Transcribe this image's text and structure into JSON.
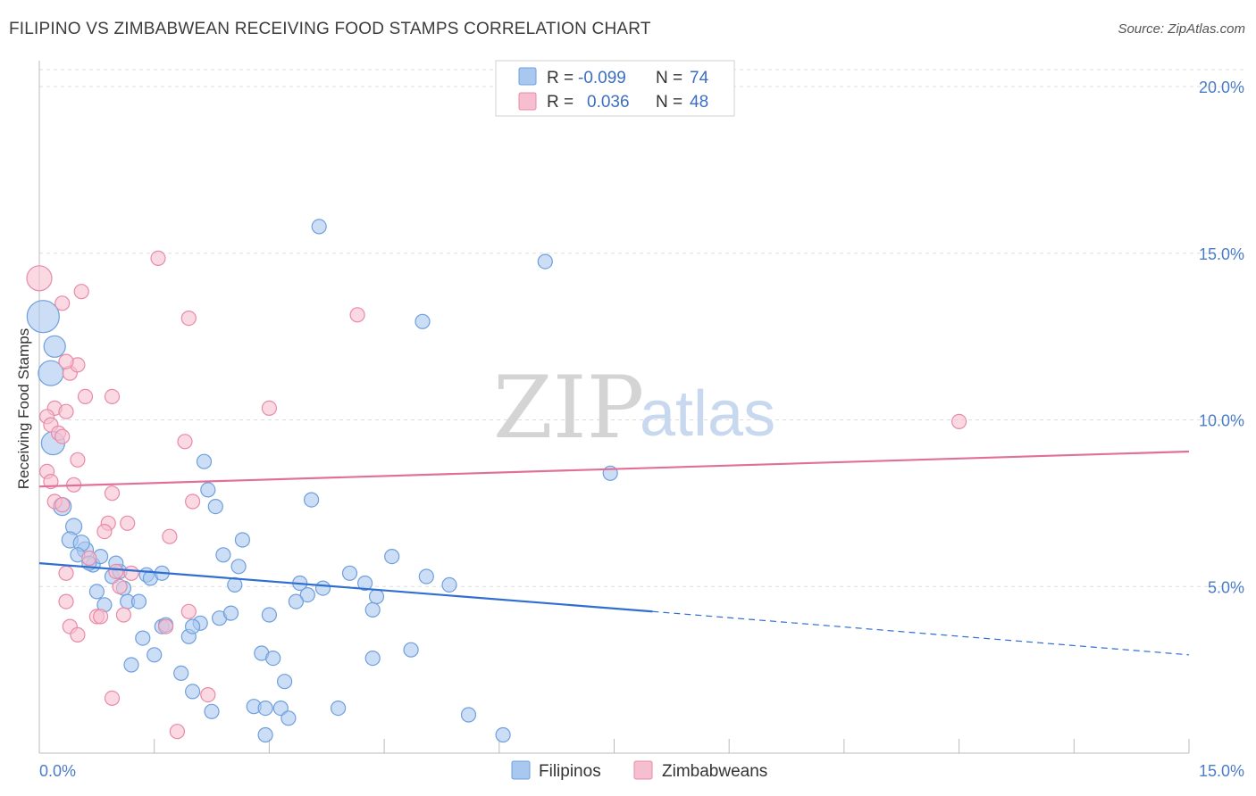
{
  "header": {
    "title": "FILIPINO VS ZIMBABWEAN RECEIVING FOOD STAMPS CORRELATION CHART",
    "source": "Source: ZipAtlas.com"
  },
  "legend": {
    "rows": [
      {
        "r_label": "R =",
        "r_value": "-0.099",
        "n_label": "N =",
        "n_value": "74"
      },
      {
        "r_label": "R =",
        "r_value": "0.036",
        "n_label": "N =",
        "n_value": "48"
      }
    ]
  },
  "watermark": {
    "zip": "ZIP",
    "atlas": "atlas"
  },
  "colors": {
    "filipino_fill": "#a9c8f0",
    "filipino_stroke": "#6f9fdc",
    "filipino_line": "#2f6fd0",
    "zimbabwean_fill": "#f6bfd0",
    "zimbabwean_stroke": "#e88aa8",
    "zimbabwean_line": "#e0709a",
    "tick_label": "#4a7cc9",
    "grid": "#dddddd"
  },
  "chart_data": {
    "type": "scatter",
    "title": "FILIPINO VS ZIMBABWEAN RECEIVING FOOD STAMPS CORRELATION CHART",
    "xlabel": "",
    "ylabel": "Receiving Food Stamps",
    "xlim": [
      0,
      15
    ],
    "ylim": [
      0,
      20
    ],
    "x_tick_labels": [
      "0.0%",
      "15.0%"
    ],
    "y_tick_labels": [
      "5.0%",
      "10.0%",
      "15.0%",
      "20.0%"
    ],
    "y_ticks": [
      5,
      10,
      15,
      20
    ],
    "grid": "horizontal dashed",
    "series": [
      {
        "name": "Filipinos",
        "R": -0.099,
        "N": 74,
        "trend": {
          "x0": 0,
          "y0": 5.7,
          "x1": 8.0,
          "y1": 4.25,
          "dashed_to_x": 15.0,
          "dashed_to_y": 2.95
        },
        "points": [
          [
            0.05,
            13.1,
            18
          ],
          [
            0.2,
            12.2,
            12
          ],
          [
            0.15,
            11.4,
            14
          ],
          [
            0.18,
            9.3,
            13
          ],
          [
            0.3,
            7.4,
            10
          ],
          [
            0.45,
            6.8,
            9
          ],
          [
            0.4,
            6.4,
            9
          ],
          [
            0.6,
            6.1,
            9
          ],
          [
            0.55,
            6.3,
            9
          ],
          [
            0.5,
            5.95,
            8
          ],
          [
            0.7,
            5.65,
            8
          ],
          [
            0.8,
            5.9,
            8
          ],
          [
            0.95,
            5.3,
            8
          ],
          [
            0.65,
            5.7,
            8
          ],
          [
            1.05,
            5.45,
            8
          ],
          [
            1.4,
            5.35,
            8
          ],
          [
            1.45,
            5.25,
            8
          ],
          [
            1.6,
            5.4,
            8
          ],
          [
            1.1,
            4.95,
            8
          ],
          [
            0.75,
            4.85,
            8
          ],
          [
            1.15,
            4.55,
            8
          ],
          [
            0.85,
            4.45,
            8
          ],
          [
            1.3,
            4.55,
            8
          ],
          [
            1.6,
            3.8,
            8
          ],
          [
            1.65,
            3.85,
            8
          ],
          [
            1.95,
            3.5,
            8
          ],
          [
            2.1,
            3.9,
            8
          ],
          [
            2.0,
            3.8,
            8
          ],
          [
            1.35,
            3.45,
            8
          ],
          [
            1.5,
            2.95,
            8
          ],
          [
            1.2,
            2.65,
            8
          ],
          [
            1.85,
            2.4,
            8
          ],
          [
            2.0,
            1.85,
            8
          ],
          [
            2.25,
            1.25,
            8
          ],
          [
            2.2,
            7.9,
            8
          ],
          [
            2.3,
            7.4,
            8
          ],
          [
            2.15,
            8.75,
            8
          ],
          [
            2.4,
            5.95,
            8
          ],
          [
            2.6,
            5.6,
            8
          ],
          [
            2.55,
            5.05,
            8
          ],
          [
            2.65,
            6.4,
            8
          ],
          [
            2.35,
            4.05,
            8
          ],
          [
            2.5,
            4.2,
            8
          ],
          [
            3.0,
            4.15,
            8
          ],
          [
            2.9,
            3.0,
            8
          ],
          [
            3.05,
            2.85,
            8
          ],
          [
            3.2,
            2.15,
            8
          ],
          [
            2.8,
            1.4,
            8
          ],
          [
            2.95,
            1.35,
            8
          ],
          [
            3.15,
            1.35,
            8
          ],
          [
            3.25,
            1.05,
            8
          ],
          [
            2.95,
            0.55,
            8
          ],
          [
            3.4,
            5.1,
            8
          ],
          [
            3.5,
            4.75,
            8
          ],
          [
            3.35,
            4.55,
            8
          ],
          [
            3.7,
            4.95,
            8
          ],
          [
            3.55,
            7.6,
            8
          ],
          [
            3.65,
            15.8,
            8
          ],
          [
            3.9,
            1.35,
            8
          ],
          [
            4.05,
            5.4,
            8
          ],
          [
            4.25,
            5.1,
            8
          ],
          [
            4.4,
            4.7,
            8
          ],
          [
            4.35,
            4.3,
            8
          ],
          [
            4.6,
            5.9,
            8
          ],
          [
            4.35,
            2.85,
            8
          ],
          [
            4.85,
            3.1,
            8
          ],
          [
            5.0,
            12.95,
            8
          ],
          [
            5.05,
            5.3,
            8
          ],
          [
            5.35,
            5.05,
            8
          ],
          [
            5.6,
            1.15,
            8
          ],
          [
            6.05,
            0.55,
            8
          ],
          [
            6.6,
            14.75,
            8
          ],
          [
            7.45,
            8.4,
            8
          ],
          [
            1.0,
            5.7,
            8
          ]
        ]
      },
      {
        "name": "Zimbabweans",
        "R": 0.036,
        "N": 48,
        "trend": {
          "x0": 0,
          "y0": 8.0,
          "x1": 15.0,
          "y1": 9.05
        },
        "points": [
          [
            0.0,
            14.25,
            14
          ],
          [
            0.3,
            13.5,
            8
          ],
          [
            0.55,
            13.85,
            8
          ],
          [
            1.55,
            14.85,
            8
          ],
          [
            1.95,
            13.05,
            8
          ],
          [
            4.15,
            13.15,
            8
          ],
          [
            0.4,
            11.4,
            8
          ],
          [
            0.5,
            11.65,
            8
          ],
          [
            0.35,
            11.75,
            8
          ],
          [
            0.6,
            10.7,
            8
          ],
          [
            0.95,
            10.7,
            8
          ],
          [
            0.2,
            10.35,
            8
          ],
          [
            0.35,
            10.25,
            8
          ],
          [
            0.1,
            10.1,
            8
          ],
          [
            0.15,
            9.85,
            8
          ],
          [
            0.25,
            9.6,
            8
          ],
          [
            0.3,
            9.5,
            8
          ],
          [
            1.9,
            9.35,
            8
          ],
          [
            3.0,
            10.35,
            8
          ],
          [
            12.0,
            9.95,
            8
          ],
          [
            0.5,
            8.8,
            8
          ],
          [
            0.1,
            8.45,
            8
          ],
          [
            0.15,
            8.15,
            8
          ],
          [
            0.45,
            8.05,
            8
          ],
          [
            0.95,
            7.8,
            8
          ],
          [
            0.2,
            7.55,
            8
          ],
          [
            0.3,
            7.45,
            8
          ],
          [
            2.0,
            7.55,
            8
          ],
          [
            0.9,
            6.9,
            8
          ],
          [
            1.15,
            6.9,
            8
          ],
          [
            0.85,
            6.65,
            8
          ],
          [
            1.7,
            6.5,
            8
          ],
          [
            0.65,
            5.85,
            8
          ],
          [
            1.0,
            5.45,
            8
          ],
          [
            1.2,
            5.4,
            8
          ],
          [
            0.35,
            5.4,
            8
          ],
          [
            0.35,
            4.55,
            8
          ],
          [
            0.75,
            4.1,
            8
          ],
          [
            0.8,
            4.1,
            8
          ],
          [
            1.1,
            4.15,
            8
          ],
          [
            1.95,
            4.25,
            8
          ],
          [
            1.65,
            3.8,
            8
          ],
          [
            0.4,
            3.8,
            8
          ],
          [
            0.5,
            3.55,
            8
          ],
          [
            0.95,
            1.65,
            8
          ],
          [
            2.2,
            1.75,
            8
          ],
          [
            1.8,
            0.65,
            8
          ],
          [
            1.05,
            5.0,
            8
          ]
        ]
      }
    ]
  },
  "bottom_legend": [
    {
      "label": "Filipinos"
    },
    {
      "label": "Zimbabweans"
    }
  ]
}
